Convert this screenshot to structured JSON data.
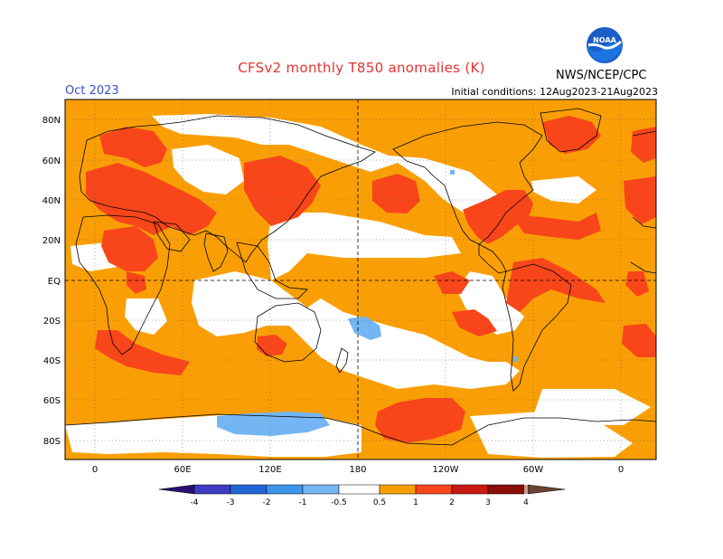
{
  "header": {
    "title": "CFSv2 monthly T850 anomalies (K)",
    "month": "Oct 2023",
    "initial_conditions": "Initial conditions: 12Aug2023-21Aug2023",
    "org": "NWS/NCEP/CPC",
    "logo_text": "NOAA"
  },
  "map": {
    "lat_labels": [
      "80N",
      "60N",
      "40N",
      "20N",
      "EQ",
      "20S",
      "40S",
      "60S",
      "80S"
    ],
    "lon_labels": [
      "0",
      "60E",
      "120E",
      "180",
      "120W",
      "60W",
      "0"
    ]
  },
  "legend": {
    "tick_labels": [
      "-4",
      "-3",
      "-2",
      "-1",
      "-0.5",
      "0.5",
      "1",
      "2",
      "3",
      "4"
    ],
    "colors": {
      "below_-4": "#2a0f6e",
      "-4_to_-3": "#3d3bbf",
      "-3_to_-2": "#2166d6",
      "-2_to_-1": "#3d95ea",
      "-1_to_-0.5": "#74b5f3",
      "-0.5_to_0.5": "#ffffff",
      "0.5_to_1": "#f99f05",
      "1_to_2": "#f8461a",
      "2_to_3": "#c81a10",
      "3_to_4": "#8c0e08",
      "4_to_5": "#c29c90",
      "above_5": "#6b4332"
    }
  }
}
